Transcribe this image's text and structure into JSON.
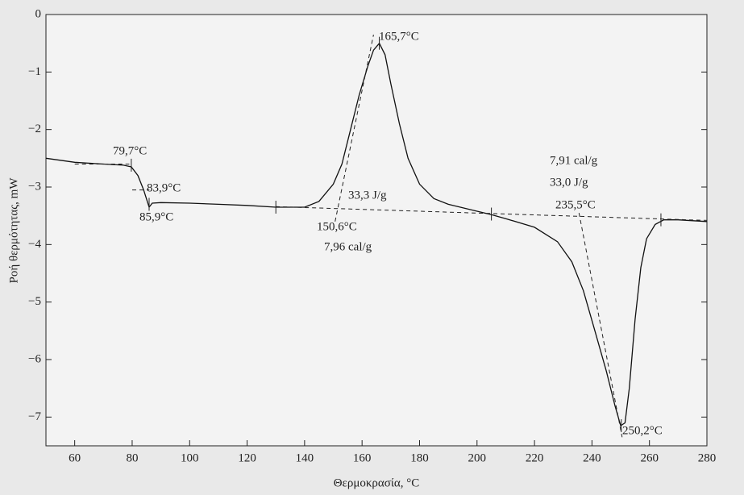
{
  "chart_data": {
    "type": "line",
    "x_label": "Θερμοκρασία, °C",
    "y_label": "Ροή θερμότητας, mW",
    "xlim": [
      50,
      280
    ],
    "ylim": [
      -7.5,
      0
    ],
    "xticks": [
      60,
      80,
      100,
      120,
      140,
      160,
      180,
      200,
      220,
      240,
      260,
      280
    ],
    "yticks": [
      0,
      {
        "value": -1,
        "label": "−1"
      },
      {
        "value": -2,
        "label": "−2"
      },
      {
        "value": -3,
        "label": "−3"
      },
      {
        "value": -4,
        "label": "−4"
      },
      {
        "value": -5,
        "label": "−5"
      },
      {
        "value": -6,
        "label": "−6"
      },
      {
        "value": -7,
        "label": "−7"
      }
    ],
    "x": [
      50,
      60,
      70,
      77,
      79.7,
      82,
      84,
      85.9,
      87,
      90,
      100,
      110,
      120,
      130,
      140,
      145,
      150,
      153,
      156,
      159,
      162,
      164,
      166,
      168,
      170,
      173,
      176,
      180,
      185,
      190,
      200,
      205,
      210,
      220,
      228,
      233,
      237,
      241,
      245,
      248,
      250,
      251.5,
      253,
      255,
      257,
      259,
      262,
      265,
      270,
      280
    ],
    "series": [
      {
        "color": "#111111",
        "values": [
          -2.5,
          -2.57,
          -2.6,
          -2.62,
          -2.65,
          -2.8,
          -3.05,
          -3.35,
          -3.28,
          -3.27,
          -3.28,
          -3.3,
          -3.32,
          -3.35,
          -3.35,
          -3.25,
          -2.95,
          -2.6,
          -2.0,
          -1.4,
          -0.9,
          -0.62,
          -0.5,
          -0.7,
          -1.2,
          -1.9,
          -2.5,
          -2.95,
          -3.2,
          -3.3,
          -3.42,
          -3.48,
          -3.55,
          -3.7,
          -3.95,
          -4.3,
          -4.8,
          -5.5,
          -6.2,
          -6.8,
          -7.15,
          -7.1,
          -6.5,
          -5.3,
          -4.4,
          -3.9,
          -3.65,
          -3.57,
          -3.57,
          -3.6
        ]
      }
    ],
    "guide_lines": [
      {
        "x": [
          60,
          79
        ],
        "y": [
          -2.6,
          -2.6
        ]
      },
      {
        "x": [
          80,
          86
        ],
        "y": [
          -3.05,
          -3.05
        ]
      },
      {
        "x": [
          130,
          280
        ],
        "y": [
          -3.34,
          -3.58
        ]
      },
      {
        "x": [
          150.6,
          164
        ],
        "y": [
          -3.6,
          -0.35
        ]
      },
      {
        "x": [
          235.5,
          250.5
        ],
        "y": [
          -3.45,
          -7.35
        ]
      }
    ],
    "markers": {
      "x": [
        79.7,
        85.9,
        130,
        205,
        264,
        166,
        250.2
      ],
      "y": [
        -2.62,
        -3.3,
        -3.35,
        -3.47,
        -3.57,
        -0.5,
        -7.15
      ]
    },
    "annotations": [
      "79,7°C",
      "83,9°C",
      "85,9°C",
      "165,7°C",
      "33,3 J/g",
      "150,6°C",
      "7,96 cal/g",
      "7,91 cal/g",
      "33,0 J/g",
      "235,5°C",
      "250,2°C"
    ]
  }
}
